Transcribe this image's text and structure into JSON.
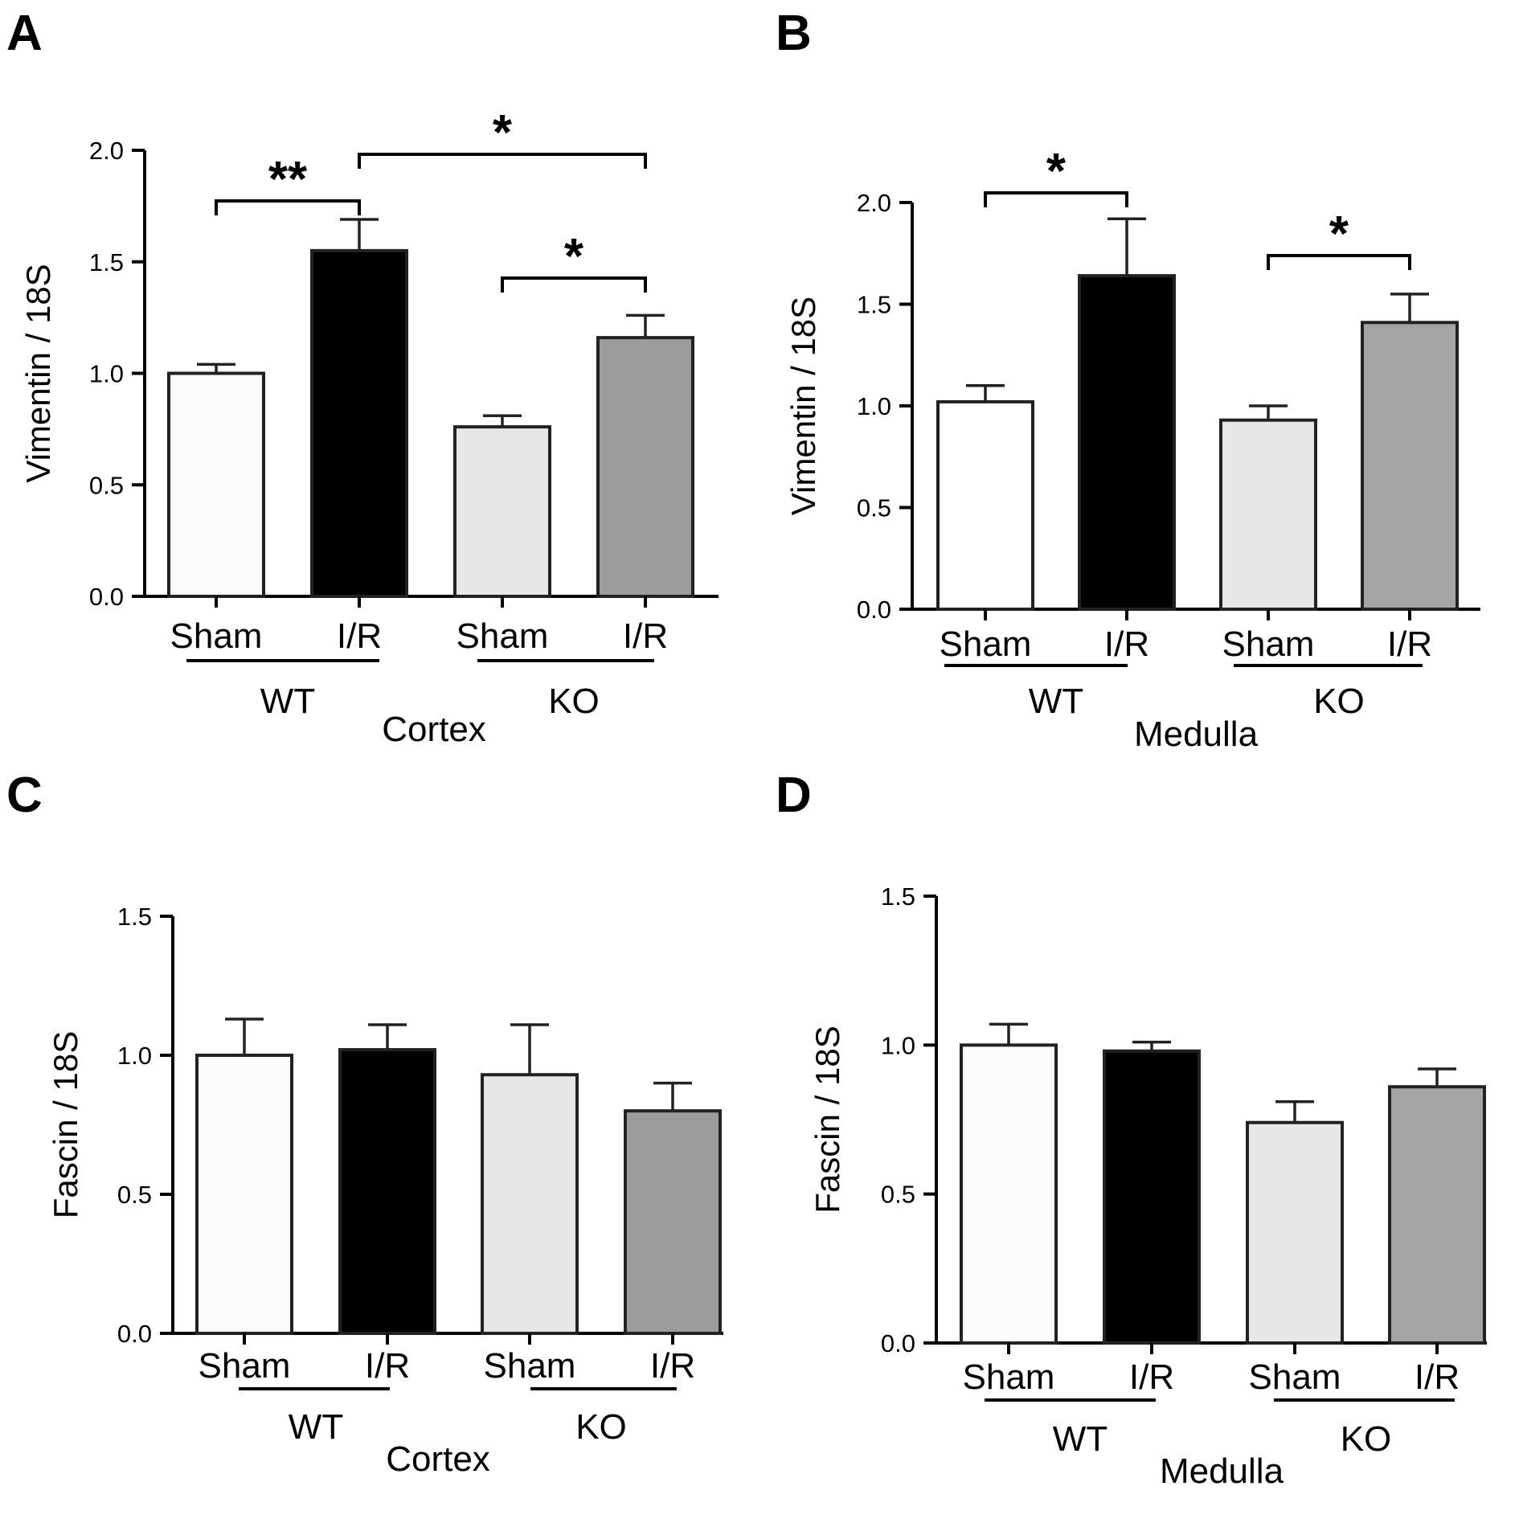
{
  "chart_data": [
    {
      "panel": "A",
      "type": "bar",
      "ylabel": "Vimentin / 18S",
      "ylim": [
        0,
        2.0
      ],
      "yticks": [
        "0.0",
        "0.5",
        "1.0",
        "1.5",
        "2.0"
      ],
      "categories": [
        "Sham",
        "I/R",
        "Sham",
        "I/R"
      ],
      "groups": [
        "WT",
        "KO"
      ],
      "region": "Cortex",
      "values": [
        1.0,
        1.55,
        0.76,
        1.16
      ],
      "errors": [
        0.04,
        0.14,
        0.05,
        0.1
      ],
      "colors": [
        "#fbfbfb",
        "#000000",
        "#e7e7e7",
        "#9c9c9c"
      ],
      "significance": [
        {
          "from": 0,
          "to": 1,
          "label": "**"
        },
        {
          "from": 1,
          "to": 3,
          "label": "*"
        },
        {
          "from": 2,
          "to": 3,
          "label": "*"
        }
      ]
    },
    {
      "panel": "B",
      "type": "bar",
      "ylabel": "Vimentin / 18S",
      "ylim": [
        0,
        2.0
      ],
      "yticks": [
        "0.0",
        "0.5",
        "1.0",
        "1.5",
        "2.0"
      ],
      "categories": [
        "Sham",
        "I/R",
        "Sham",
        "I/R"
      ],
      "groups": [
        "WT",
        "KO"
      ],
      "region": "Medulla",
      "values": [
        1.02,
        1.64,
        0.93,
        1.41
      ],
      "errors": [
        0.08,
        0.28,
        0.07,
        0.14
      ],
      "colors": [
        "#ffffff",
        "#000000",
        "#e7e7e7",
        "#a5a5a5"
      ],
      "significance": [
        {
          "from": 0,
          "to": 1,
          "label": "*"
        },
        {
          "from": 2,
          "to": 3,
          "label": "*"
        }
      ]
    },
    {
      "panel": "C",
      "type": "bar",
      "ylabel": "Fascin  / 18S",
      "ylim": [
        0,
        1.5
      ],
      "yticks": [
        "0.0",
        "0.5",
        "1.0",
        "1.5"
      ],
      "categories": [
        "Sham",
        "I/R",
        "Sham",
        "I/R"
      ],
      "groups": [
        "WT",
        "KO"
      ],
      "region": "Cortex",
      "values": [
        1.0,
        1.02,
        0.93,
        0.8
      ],
      "errors": [
        0.13,
        0.09,
        0.18,
        0.1
      ],
      "colors": [
        "#fbfbfb",
        "#000000",
        "#e7e7e7",
        "#9c9c9c"
      ],
      "significance": []
    },
    {
      "panel": "D",
      "type": "bar",
      "ylabel": "Fascin / 18S",
      "ylim": [
        0,
        1.5
      ],
      "yticks": [
        "0.0",
        "0.5",
        "1.0",
        "1.5"
      ],
      "categories": [
        "Sham",
        "I/R",
        "Sham",
        "I/R"
      ],
      "groups": [
        "WT",
        "KO"
      ],
      "region": "Medulla",
      "values": [
        1.0,
        0.98,
        0.74,
        0.86
      ],
      "errors": [
        0.07,
        0.03,
        0.07,
        0.06
      ],
      "colors": [
        "#fbfbfb",
        "#000000",
        "#e7e7e7",
        "#a5a5a5"
      ],
      "significance": []
    }
  ]
}
